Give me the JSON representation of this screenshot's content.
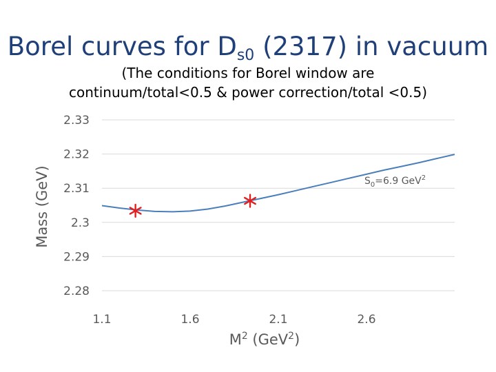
{
  "title": {
    "main_before": "Borel curves for D",
    "main_sub": "s0",
    "main_after": " (2317) in vacuum",
    "subtitle_line1": "(The conditions for Borel window are",
    "subtitle_line2": "continuum/total<0.5 & power correction/total <0.5)"
  },
  "chart_data": {
    "type": "line",
    "xlabel": "M",
    "xlabel_sup": "2",
    "xlabel_units": " (GeV",
    "xlabel_units_sup": "2",
    "xlabel_close": ")",
    "ylabel": "Mass (GeV)",
    "xlim": [
      1.1,
      3.1
    ],
    "ylim": [
      2.28,
      2.33
    ],
    "x_ticks": [
      "1.1",
      "1.6",
      "2.1",
      "2.6"
    ],
    "y_ticks": [
      "2.28",
      "2.29",
      "2.3",
      "2.31",
      "2.32",
      "2.33"
    ],
    "grid": true,
    "series": [
      {
        "name": "S0=6.9 GeV2",
        "label_prefix": "S",
        "label_sub": "0",
        "label_mid": "=6.9 GeV",
        "label_sup": "2",
        "color": "#4a7ebb",
        "x": [
          1.1,
          1.2,
          1.3,
          1.4,
          1.5,
          1.6,
          1.7,
          1.8,
          1.9,
          2.0,
          2.1,
          2.2,
          2.3,
          2.4,
          2.5,
          2.6,
          2.7,
          2.8,
          2.9,
          3.0,
          3.1
        ],
        "y": [
          2.3049,
          2.3042,
          2.3036,
          2.3032,
          2.3031,
          2.3033,
          2.3039,
          2.3048,
          2.3059,
          2.307,
          2.3081,
          2.3093,
          2.3105,
          2.3117,
          2.3129,
          2.3141,
          2.3153,
          2.3164,
          2.3175,
          2.3187,
          2.3199
        ]
      }
    ],
    "markers": [
      {
        "x": 1.29,
        "y": 2.3034,
        "symbol": "*",
        "color": "#e02020"
      },
      {
        "x": 1.94,
        "y": 2.3063,
        "symbol": "*",
        "color": "#e02020"
      }
    ]
  }
}
